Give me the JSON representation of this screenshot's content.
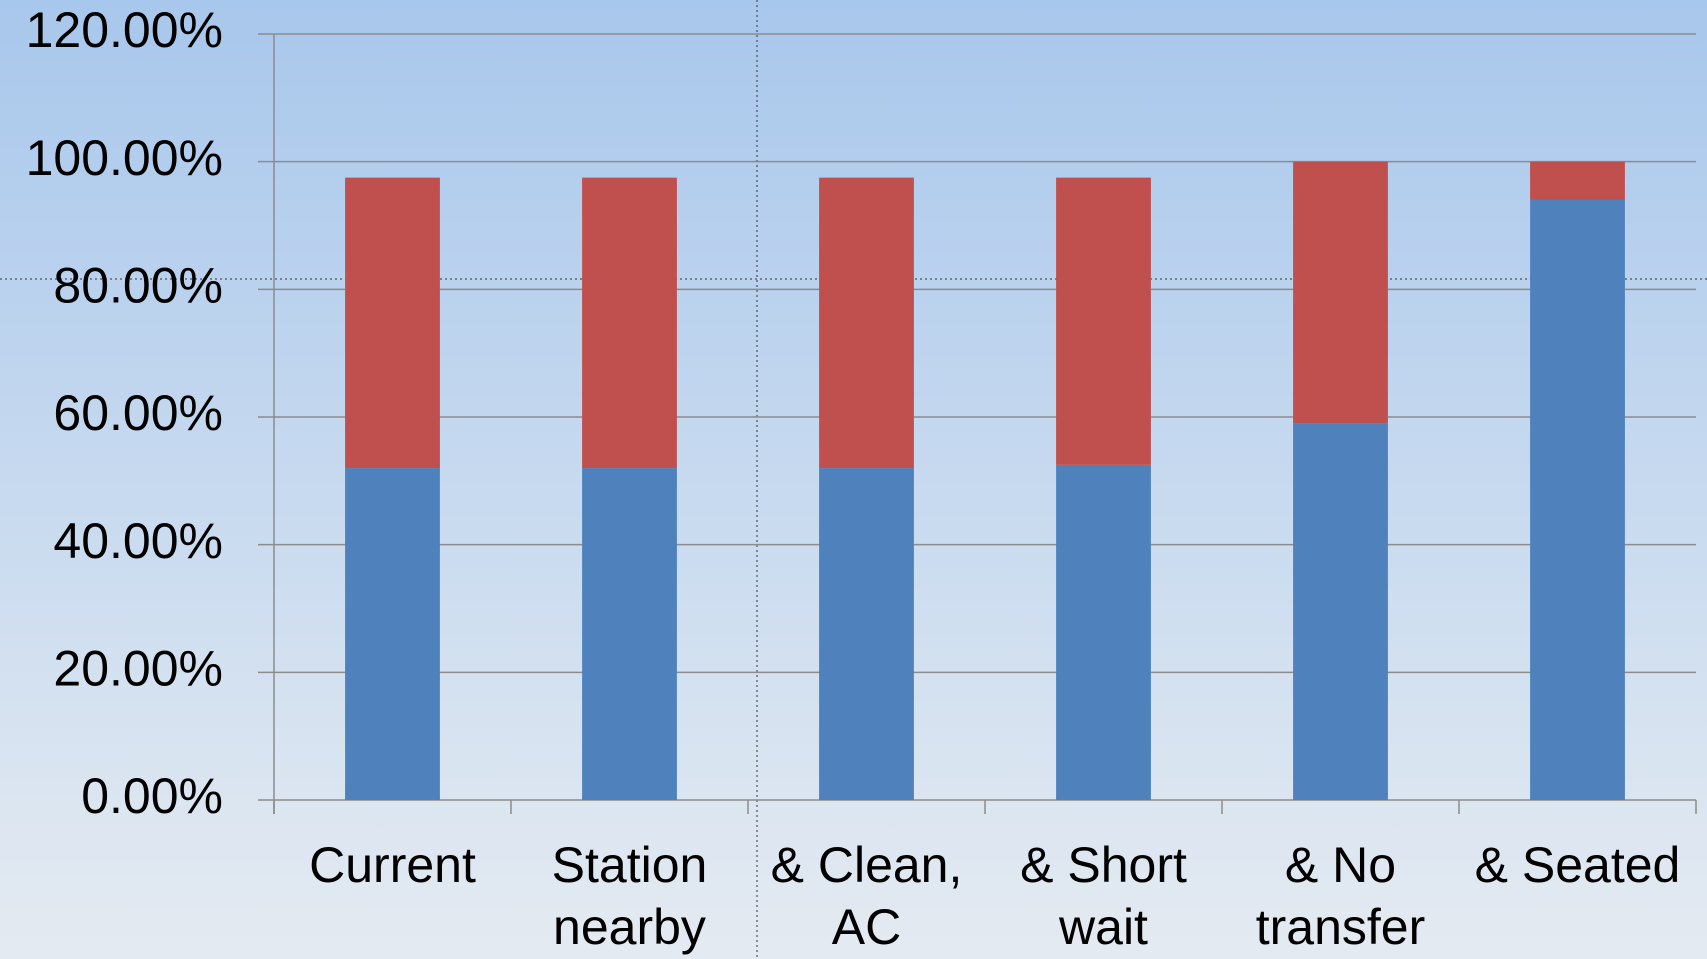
{
  "chart_data": {
    "type": "stacked-bar",
    "categories": [
      "Current",
      "Station nearby",
      "& Clean, AC",
      "& Short wait",
      "& No transfer",
      "& Seated"
    ],
    "series": [
      {
        "color": "#4f81bd",
        "values": [
          52,
          52,
          52,
          52.5,
          59,
          94
        ]
      },
      {
        "color": "#c0504d",
        "values": [
          45.5,
          45.5,
          45.5,
          45,
          41,
          6
        ]
      }
    ],
    "ylim": [
      0,
      120
    ],
    "yticks": [
      {
        "value": 0,
        "label": "0.00%"
      },
      {
        "value": 20,
        "label": "20.00%"
      },
      {
        "value": 40,
        "label": "40.00%"
      },
      {
        "value": 60,
        "label": "60.00%"
      },
      {
        "value": 80,
        "label": "80.00%"
      },
      {
        "value": 100,
        "label": "100.00%"
      },
      {
        "value": 120,
        "label": "120.00%"
      }
    ],
    "grid": true
  }
}
